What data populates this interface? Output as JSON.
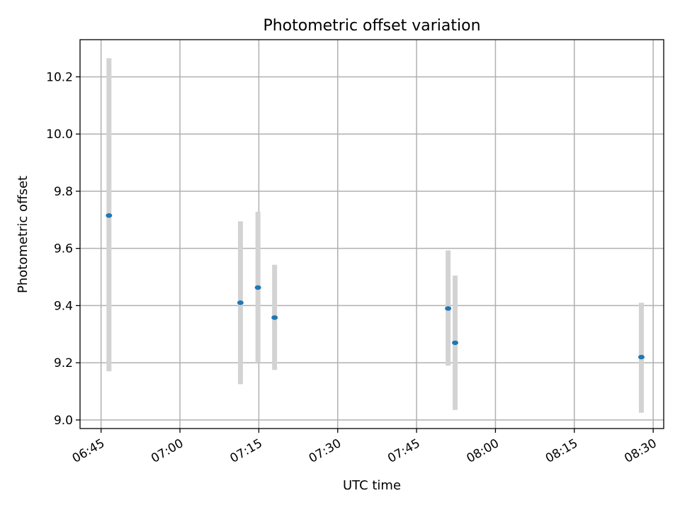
{
  "chart_data": {
    "type": "scatter",
    "title": "Photometric offset variation",
    "xlabel": "UTC time",
    "ylabel": "Photometric offset",
    "grid": true,
    "x_ticks": [
      "06:45",
      "07:00",
      "07:15",
      "07:30",
      "07:45",
      "08:00",
      "08:15",
      "08:30"
    ],
    "y_ticks": [
      "9.0",
      "9.2",
      "9.4",
      "9.6",
      "9.8",
      "10.0",
      "10.2"
    ],
    "xlim": [
      "06:41",
      "08:32"
    ],
    "ylim": [
      8.97,
      10.33
    ],
    "marker_color": "#1f77b4",
    "errorbar_color": "#d3d3d3",
    "points": [
      {
        "x": "06:46:30",
        "y": 9.715,
        "yerr_low": 9.17,
        "yerr_high": 10.265
      },
      {
        "x": "07:11:30",
        "y": 9.41,
        "yerr_low": 9.125,
        "yerr_high": 9.695
      },
      {
        "x": "07:14:50",
        "y": 9.463,
        "yerr_low": 9.2,
        "yerr_high": 9.728
      },
      {
        "x": "07:18:00",
        "y": 9.358,
        "yerr_low": 9.175,
        "yerr_high": 9.543
      },
      {
        "x": "07:51:00",
        "y": 9.39,
        "yerr_low": 9.19,
        "yerr_high": 9.593
      },
      {
        "x": "07:52:20",
        "y": 9.27,
        "yerr_low": 9.035,
        "yerr_high": 9.505
      },
      {
        "x": "08:27:45",
        "y": 9.22,
        "yerr_low": 9.025,
        "yerr_high": 9.41
      }
    ]
  }
}
